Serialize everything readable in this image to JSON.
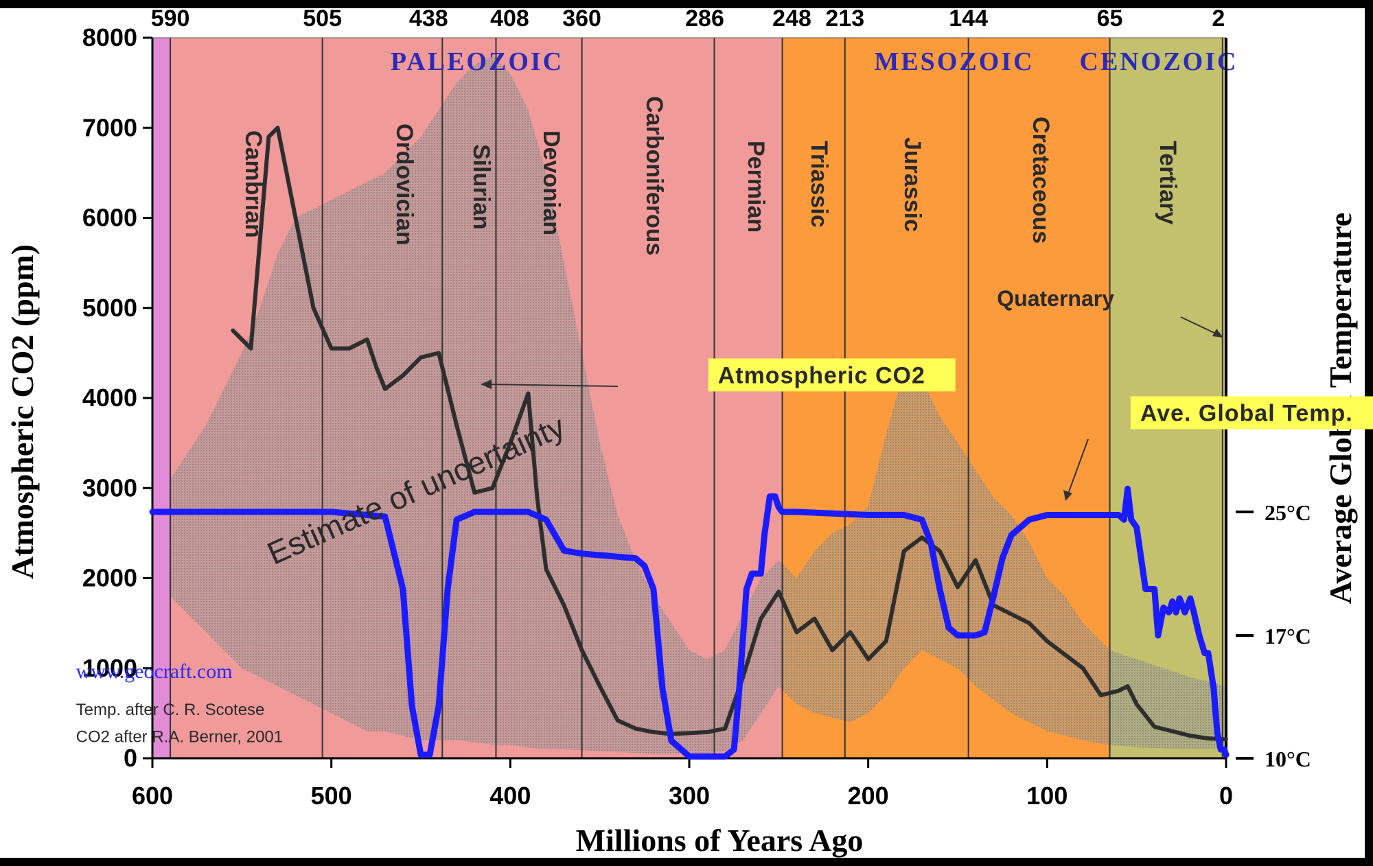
{
  "chart_data": {
    "type": "line",
    "xlabel": "Millions of Years Ago",
    "ylabel": "Atmospheric CO2 (ppm)",
    "y2label": "Average Global Temperature",
    "xlim": [
      600,
      0
    ],
    "ylim": [
      0,
      8000
    ],
    "x_ticks": [
      "600",
      "500",
      "400",
      "300",
      "200",
      "100",
      "0"
    ],
    "y_ticks": [
      "0",
      "1000",
      "2000",
      "3000",
      "4000",
      "5000",
      "6000",
      "7000",
      "8000"
    ],
    "temp_axis": {
      "ticks": [
        {
          "label": "10°C",
          "temp": 10
        },
        {
          "label": "17°C",
          "temp": 17
        },
        {
          "label": "25°C",
          "temp": 25
        }
      ]
    },
    "boundaries": [
      {
        "label": "590",
        "x": 590
      },
      {
        "label": "505",
        "x": 505
      },
      {
        "label": "438",
        "x": 438
      },
      {
        "label": "408",
        "x": 408
      },
      {
        "label": "360",
        "x": 360
      },
      {
        "label": "286",
        "x": 286
      },
      {
        "label": "248",
        "x": 248
      },
      {
        "label": "213",
        "x": 213
      },
      {
        "label": "144",
        "x": 144
      },
      {
        "label": "65",
        "x": 65
      },
      {
        "label": "2",
        "x": 2
      }
    ],
    "eras": [
      {
        "name": "PALEOZOIC",
        "start": 590,
        "end": 248,
        "color": "#f09a9a"
      },
      {
        "name": "MESOZOIC",
        "start": 248,
        "end": 65,
        "color": "#fb9b3c"
      },
      {
        "name": "CENOZOIC",
        "start": 65,
        "end": 0,
        "color": "#c3c06e"
      }
    ],
    "precambrian_band_color": "#e28bd6",
    "periods": [
      {
        "name": "Cambrian",
        "start": 590,
        "end": 505
      },
      {
        "name": "Ordovician",
        "start": 505,
        "end": 438
      },
      {
        "name": "Silurian",
        "start": 438,
        "end": 408
      },
      {
        "name": "Devonian",
        "start": 408,
        "end": 360
      },
      {
        "name": "Carboniferous",
        "start": 360,
        "end": 286
      },
      {
        "name": "Permian",
        "start": 286,
        "end": 248
      },
      {
        "name": "Triassic",
        "start": 248,
        "end": 213
      },
      {
        "name": "Jurassic",
        "start": 213,
        "end": 144
      },
      {
        "name": "Cretaceous",
        "start": 144,
        "end": 65
      },
      {
        "name": "Tertiary",
        "start": 65,
        "end": 2
      }
    ],
    "series": [
      {
        "name": "Atmospheric CO2",
        "color": "#2e2e2e",
        "x": [
          555,
          545,
          535,
          530,
          520,
          510,
          500,
          490,
          480,
          475,
          470,
          460,
          450,
          440,
          430,
          420,
          410,
          400,
          390,
          385,
          380,
          370,
          360,
          350,
          340,
          330,
          320,
          310,
          300,
          290,
          280,
          270,
          260,
          250,
          240,
          230,
          220,
          210,
          200,
          190,
          180,
          170,
          160,
          150,
          140,
          130,
          120,
          110,
          100,
          90,
          80,
          70,
          60,
          55,
          50,
          40,
          30,
          20,
          10,
          0
        ],
        "values": [
          4750,
          4550,
          6900,
          7000,
          6000,
          5000,
          4550,
          4550,
          4650,
          4350,
          4100,
          4250,
          4450,
          4500,
          3700,
          2950,
          3000,
          3500,
          4050,
          2900,
          2100,
          1700,
          1200,
          800,
          420,
          330,
          290,
          270,
          280,
          290,
          330,
          900,
          1550,
          1850,
          1400,
          1550,
          1200,
          1400,
          1100,
          1300,
          2300,
          2450,
          2300,
          1900,
          2200,
          1700,
          1600,
          1500,
          1300,
          1150,
          1000,
          700,
          750,
          800,
          600,
          350,
          300,
          250,
          220,
          210
        ]
      },
      {
        "name": "Ave. Global Temp.",
        "color": "#1b1bff",
        "x": [
          600,
          590,
          500,
          470,
          460,
          455,
          450,
          445,
          440,
          435,
          430,
          420,
          390,
          380,
          370,
          360,
          330,
          325,
          320,
          315,
          310,
          300,
          290,
          280,
          275,
          272,
          268,
          265,
          260,
          258,
          255,
          252,
          250,
          248,
          245,
          240,
          200,
          180,
          170,
          165,
          160,
          155,
          150,
          145,
          140,
          135,
          130,
          125,
          120,
          110,
          100,
          90,
          80,
          65,
          60,
          57,
          55,
          53,
          50,
          45,
          40,
          38,
          35,
          32,
          30,
          28,
          26,
          23,
          20,
          18,
          15,
          12,
          10,
          7,
          5,
          3,
          1,
          0
        ],
        "values": [
          25,
          25,
          25,
          24.7,
          20,
          13,
          10.2,
          10.2,
          13,
          20,
          24.5,
          25,
          25,
          24.5,
          22.5,
          22.3,
          22,
          21.5,
          20,
          14,
          11,
          10.1,
          10.1,
          10.1,
          10.5,
          14,
          20,
          21,
          21,
          23.5,
          26,
          26,
          25.3,
          25,
          25,
          25,
          24.8,
          24.8,
          24.5,
          23,
          20,
          17.5,
          17,
          17,
          17,
          17.2,
          19.5,
          22,
          23.5,
          24.5,
          24.8,
          24.8,
          24.8,
          24.8,
          24.8,
          24.5,
          26.5,
          24.5,
          24,
          20,
          20,
          17,
          18.8,
          18.5,
          19.2,
          18.5,
          19.4,
          18.5,
          19.4,
          18.5,
          17,
          16,
          16,
          14,
          11.5,
          10.5,
          10.5,
          10.2
        ]
      }
    ],
    "uncertainty_band": {
      "x": [
        590,
        580,
        570,
        560,
        550,
        540,
        530,
        520,
        510,
        500,
        490,
        480,
        470,
        460,
        450,
        440,
        430,
        420,
        410,
        400,
        390,
        380,
        370,
        360,
        350,
        340,
        330,
        320,
        310,
        300,
        290,
        280,
        270,
        260,
        250,
        240,
        230,
        220,
        210,
        200,
        190,
        180,
        170,
        160,
        150,
        140,
        130,
        120,
        110,
        100,
        90,
        80,
        70,
        65,
        50,
        20,
        0
      ],
      "upper": [
        3100,
        3400,
        3700,
        4100,
        4500,
        5000,
        5600,
        6000,
        6100,
        6200,
        6300,
        6400,
        6500,
        6700,
        6900,
        7200,
        7500,
        7700,
        7800,
        7600,
        7200,
        6500,
        5500,
        4500,
        3500,
        2700,
        2200,
        1800,
        1500,
        1200,
        1100,
        1200,
        1600,
        2000,
        2200,
        2000,
        2300,
        2500,
        2600,
        2800,
        3600,
        4300,
        4200,
        3800,
        3500,
        3200,
        2900,
        2700,
        2400,
        2000,
        1800,
        1500,
        1300,
        1200,
        1100,
        900,
        800
      ],
      "lower": [
        1800,
        1600,
        1400,
        1200,
        1000,
        900,
        800,
        700,
        600,
        500,
        400,
        300,
        300,
        250,
        200,
        200,
        200,
        180,
        150,
        150,
        120,
        100,
        100,
        90,
        80,
        70,
        60,
        50,
        50,
        60,
        60,
        80,
        200,
        500,
        800,
        600,
        500,
        450,
        400,
        500,
        700,
        1000,
        1200,
        1100,
        1000,
        800,
        650,
        500,
        400,
        300,
        250,
        200,
        160,
        150,
        120,
        100,
        100
      ]
    },
    "annotations": [
      {
        "text": "Atmospheric CO2",
        "style": "yellow-box",
        "x": 284,
        "y": 4180
      },
      {
        "text": "Ave. Global Temp.",
        "style": "yellow-box",
        "x": 48,
        "y": 3760
      },
      {
        "text": "Estimate of uncertainty",
        "style": "rotated",
        "x": 467,
        "y": 4050
      },
      {
        "text": "Quaternary",
        "style": "plain",
        "x": 82,
        "y": 5020
      },
      {
        "text": "www.geocraft.com",
        "style": "credit-link",
        "x": 566,
        "y": 890
      },
      {
        "text": "Temp. after C. R. Scotese",
        "style": "credit",
        "x": 566,
        "y": 480
      },
      {
        "text": "CO2 after R.A. Berner, 2001",
        "style": "credit",
        "x": 566,
        "y": 180
      }
    ]
  }
}
